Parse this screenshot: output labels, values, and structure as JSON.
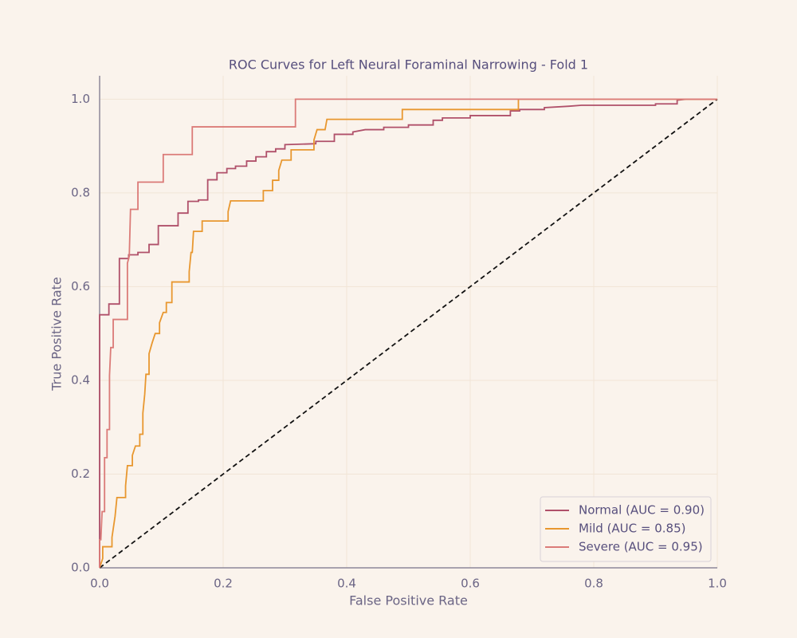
{
  "chart_data": {
    "type": "line",
    "title": "ROC Curves for Left Neural Foraminal Narrowing - Fold 1",
    "xlabel": "False Positive Rate",
    "ylabel": "True Positive Rate",
    "xlim": [
      0,
      1
    ],
    "ylim": [
      0,
      1.05
    ],
    "xticks": [
      {
        "value": 0,
        "label": "0.0"
      },
      0.2,
      0.4,
      0.6,
      0.8,
      {
        "value": 1,
        "label": "1.0"
      }
    ],
    "yticks": [
      {
        "value": 0,
        "label": "0.0"
      },
      0.2,
      0.4,
      0.6,
      0.8,
      {
        "value": 1,
        "label": "1.0"
      }
    ],
    "grid": true,
    "legend": "lower right",
    "diagonal": true,
    "series": [
      {
        "name": "Normal (AUC = 0.90)",
        "color": "#b0506a",
        "x": [
          0,
          0,
          0.015,
          0.015,
          0.032,
          0.032,
          0.047,
          0.047,
          0.062,
          0.062,
          0.08,
          0.08,
          0.095,
          0.095,
          0.127,
          0.127,
          0.143,
          0.143,
          0.16,
          0.16,
          0.175,
          0.175,
          0.19,
          0.19,
          0.206,
          0.206,
          0.22,
          0.22,
          0.238,
          0.238,
          0.253,
          0.253,
          0.27,
          0.27,
          0.285,
          0.285,
          0.3,
          0.3,
          0.35,
          0.35,
          0.38,
          0.38,
          0.41,
          0.41,
          0.43,
          0.46,
          0.46,
          0.5,
          0.5,
          0.54,
          0.54,
          0.555,
          0.555,
          0.6,
          0.6,
          0.665,
          0.665,
          0.68,
          0.68,
          0.72,
          0.72,
          0.76,
          0.78,
          0.9,
          0.9,
          0.935,
          0.935,
          0.95,
          1
        ],
        "values": [
          0,
          0.54,
          0.54,
          0.563,
          0.563,
          0.66,
          0.66,
          0.668,
          0.668,
          0.673,
          0.673,
          0.69,
          0.69,
          0.73,
          0.73,
          0.757,
          0.757,
          0.782,
          0.782,
          0.785,
          0.785,
          0.828,
          0.828,
          0.843,
          0.843,
          0.852,
          0.852,
          0.857,
          0.857,
          0.868,
          0.868,
          0.877,
          0.877,
          0.888,
          0.888,
          0.894,
          0.894,
          0.903,
          0.905,
          0.91,
          0.91,
          0.925,
          0.925,
          0.93,
          0.935,
          0.935,
          0.94,
          0.94,
          0.945,
          0.945,
          0.955,
          0.955,
          0.96,
          0.96,
          0.965,
          0.965,
          0.975,
          0.975,
          0.978,
          0.978,
          0.982,
          0.985,
          0.987,
          0.987,
          0.99,
          0.99,
          0.998,
          1,
          1
        ]
      },
      {
        "name": "Mild (AUC = 0.85)",
        "color": "#e8972f",
        "x": [
          0,
          0.005,
          0.005,
          0.02,
          0.02,
          0.025,
          0.028,
          0.042,
          0.042,
          0.045,
          0.053,
          0.053,
          0.058,
          0.065,
          0.065,
          0.07,
          0.07,
          0.073,
          0.075,
          0.08,
          0.08,
          0.085,
          0.09,
          0.097,
          0.097,
          0.103,
          0.108,
          0.108,
          0.117,
          0.117,
          0.145,
          0.145,
          0.148,
          0.15,
          0.152,
          0.166,
          0.166,
          0.208,
          0.208,
          0.212,
          0.265,
          0.265,
          0.28,
          0.28,
          0.29,
          0.29,
          0.295,
          0.31,
          0.31,
          0.347,
          0.347,
          0.352,
          0.365,
          0.368,
          0.49,
          0.49,
          0.678,
          0.678,
          1
        ],
        "values": [
          0,
          0.02,
          0.045,
          0.045,
          0.065,
          0.11,
          0.15,
          0.15,
          0.175,
          0.218,
          0.218,
          0.24,
          0.26,
          0.26,
          0.285,
          0.285,
          0.33,
          0.37,
          0.413,
          0.413,
          0.457,
          0.48,
          0.5,
          0.5,
          0.523,
          0.545,
          0.545,
          0.566,
          0.566,
          0.61,
          0.61,
          0.632,
          0.673,
          0.673,
          0.718,
          0.718,
          0.74,
          0.74,
          0.76,
          0.783,
          0.783,
          0.805,
          0.805,
          0.827,
          0.827,
          0.848,
          0.87,
          0.87,
          0.892,
          0.892,
          0.913,
          0.935,
          0.935,
          0.957,
          0.957,
          0.978,
          0.978,
          1,
          1
        ]
      },
      {
        "name": "Severe (AUC = 0.95)",
        "color": "#db7b78",
        "x": [
          0,
          0,
          0.002,
          0.004,
          0.008,
          0.008,
          0.012,
          0.012,
          0.016,
          0.016,
          0.018,
          0.022,
          0.022,
          0.045,
          0.045,
          0.048,
          0.05,
          0.062,
          0.062,
          0.103,
          0.103,
          0.15,
          0.15,
          0.317,
          0.317,
          1
        ],
        "values": [
          0,
          0.06,
          0.06,
          0.12,
          0.12,
          0.235,
          0.235,
          0.295,
          0.295,
          0.41,
          0.47,
          0.47,
          0.53,
          0.53,
          0.65,
          0.665,
          0.765,
          0.765,
          0.823,
          0.823,
          0.882,
          0.882,
          0.941,
          0.941,
          1,
          1
        ]
      }
    ]
  }
}
